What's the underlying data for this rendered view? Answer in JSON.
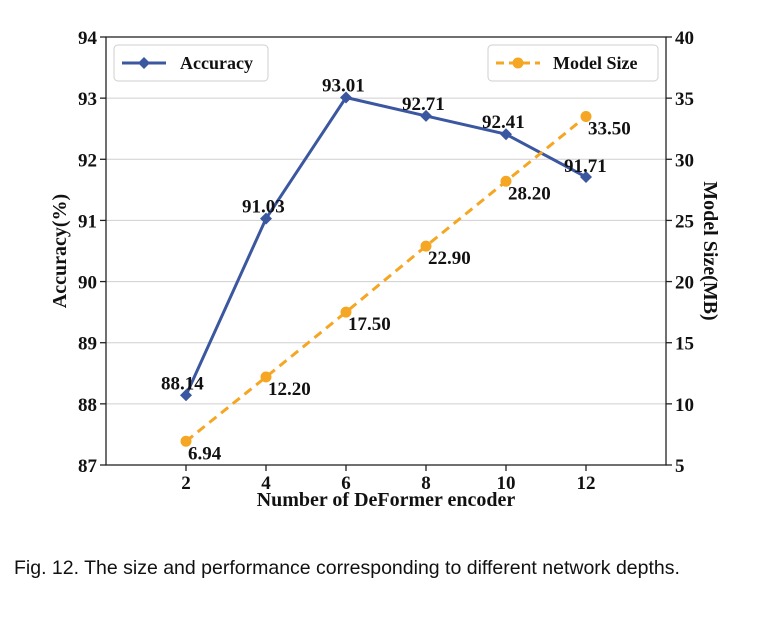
{
  "chart_data": {
    "type": "line",
    "xlabel": "Number of DeFormer encoder",
    "ylabel": "Accuracy(%)",
    "y2label": "Model Size(MB)",
    "x": [
      2,
      4,
      6,
      8,
      10,
      12
    ],
    "xticks": [
      "2",
      "4",
      "6",
      "8",
      "10",
      "12"
    ],
    "xlim": [
      0,
      14
    ],
    "ylim": [
      87,
      94
    ],
    "yticks": [
      "87",
      "88",
      "89",
      "90",
      "91",
      "92",
      "93",
      "94"
    ],
    "y2lim": [
      5,
      40
    ],
    "y2ticks": [
      "5",
      "10",
      "15",
      "20",
      "25",
      "30",
      "35",
      "40"
    ],
    "grid": true,
    "series": [
      {
        "name": "Accuracy",
        "axis": "left",
        "color": "#3a57a0",
        "marker": "diamond",
        "line": "solid",
        "values": [
          88.14,
          91.03,
          93.01,
          92.71,
          92.41,
          91.71
        ],
        "labels": [
          "88.14",
          "91.03",
          "93.01",
          "92.71",
          "92.41",
          "91.71"
        ],
        "legend_position": "top-left"
      },
      {
        "name": "Model Size",
        "axis": "right",
        "color": "#f5a623",
        "marker": "circle",
        "line": "dashed",
        "values": [
          6.94,
          12.2,
          17.5,
          22.9,
          28.2,
          33.5
        ],
        "labels": [
          "6.94",
          "12.20",
          "17.50",
          "22.90",
          "28.20",
          "33.50"
        ],
        "legend_position": "top-right"
      }
    ]
  },
  "caption": "Fig. 12. The size and performance corresponding to different network depths."
}
